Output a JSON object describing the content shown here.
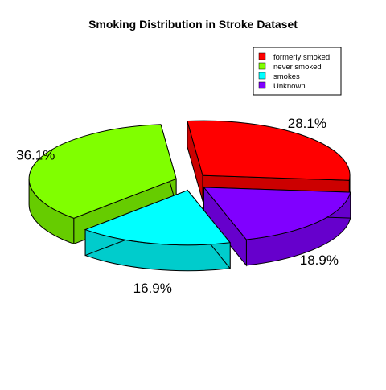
{
  "chart_data": {
    "type": "pie",
    "title": "Smoking Distribution in Stroke Dataset",
    "three_d": true,
    "exploded": true,
    "legend_position": "top-right",
    "slices": [
      {
        "label": "formerly smoked",
        "value": 28.1,
        "value_label": "28.1%",
        "color": "#ff0000",
        "side_color": "#cc0000"
      },
      {
        "label": "Unknown",
        "value": 18.9,
        "value_label": "18.9%",
        "color": "#8000ff",
        "side_color": "#6600cc"
      },
      {
        "label": "smokes",
        "value": 16.9,
        "value_label": "16.9%",
        "color": "#00ffff",
        "side_color": "#00cccc"
      },
      {
        "label": "never smoked",
        "value": 36.1,
        "value_label": "36.1%",
        "color": "#80ff00",
        "side_color": "#66cc00"
      }
    ],
    "legend": [
      {
        "label": "formerly smoked",
        "color": "#ff0000"
      },
      {
        "label": "never smoked",
        "color": "#80ff00"
      },
      {
        "label": "smokes",
        "color": "#00ffff"
      },
      {
        "label": "Unknown",
        "color": "#8000ff"
      }
    ]
  }
}
